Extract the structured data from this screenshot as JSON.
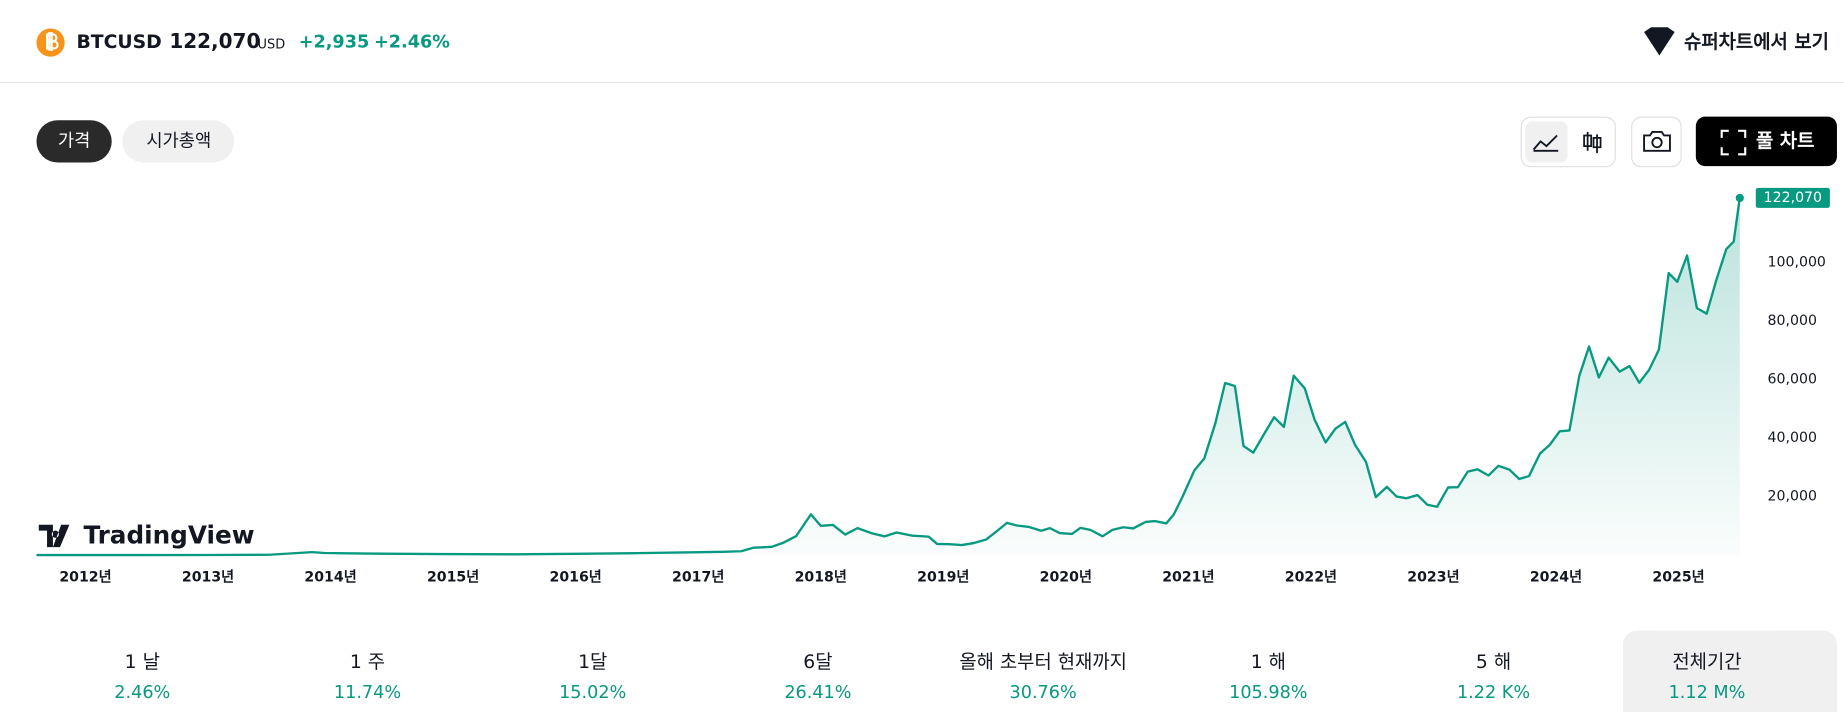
{
  "header": {
    "symbol": "BTCUSD",
    "price": "122,070",
    "currency": "USD",
    "change": "+2,935",
    "change_percent": "+2.46%",
    "supercharts_link": "슈퍼차트에서 보기"
  },
  "tabs": [
    "가격",
    "시가총액"
  ],
  "full_chart_button": "풀 차트",
  "logo": "TradingView",
  "chart_data": {
    "type": "line",
    "color": "#089981",
    "grid": false,
    "x": [
      2011.6,
      2012.5,
      2013.0,
      2013.5,
      2013.85,
      2013.95,
      2014.3,
      2014.9,
      2015.5,
      2016.0,
      2016.5,
      2016.95,
      2017.2,
      2017.35,
      2017.45,
      2017.6,
      2017.7,
      2017.8,
      2017.92,
      2018.0,
      2018.1,
      2018.2,
      2018.3,
      2018.42,
      2018.52,
      2018.62,
      2018.75,
      2018.88,
      2018.95,
      2019.05,
      2019.15,
      2019.25,
      2019.35,
      2019.45,
      2019.52,
      2019.6,
      2019.7,
      2019.8,
      2019.87,
      2019.95,
      2020.05,
      2020.12,
      2020.2,
      2020.3,
      2020.38,
      2020.47,
      2020.55,
      2020.65,
      2020.73,
      2020.82,
      2020.88,
      2020.95,
      2021.05,
      2021.13,
      2021.22,
      2021.3,
      2021.38,
      2021.45,
      2021.53,
      2021.62,
      2021.7,
      2021.78,
      2021.86,
      2021.95,
      2022.03,
      2022.12,
      2022.2,
      2022.28,
      2022.36,
      2022.45,
      2022.53,
      2022.62,
      2022.7,
      2022.78,
      2022.87,
      2022.95,
      2023.03,
      2023.12,
      2023.2,
      2023.28,
      2023.36,
      2023.45,
      2023.53,
      2023.62,
      2023.7,
      2023.78,
      2023.87,
      2023.95,
      2024.03,
      2024.11,
      2024.19,
      2024.27,
      2024.35,
      2024.43,
      2024.52,
      2024.6,
      2024.68,
      2024.76,
      2024.84,
      2024.92,
      2024.99,
      2025.07,
      2025.15,
      2025.23,
      2025.31,
      2025.39,
      2025.45,
      2025.5
    ],
    "values": [
      5,
      7,
      13,
      100,
      1000,
      700,
      500,
      350,
      250,
      430,
      650,
      950,
      1100,
      1300,
      2500,
      2800,
      4300,
      6500,
      13900,
      10000,
      10300,
      7000,
      9200,
      7400,
      6400,
      7700,
      6600,
      6300,
      3800,
      3700,
      3400,
      4100,
      5300,
      8600,
      11000,
      10100,
      9600,
      8300,
      9200,
      7500,
      7200,
      9300,
      8600,
      6400,
      8600,
      9500,
      9100,
      11300,
      11600,
      10800,
      13800,
      19700,
      29000,
      33000,
      45000,
      58800,
      57800,
      37300,
      35000,
      41500,
      47100,
      43800,
      61300,
      57000,
      46300,
      38500,
      43200,
      45500,
      37700,
      31800,
      19800,
      23300,
      20000,
      19400,
      20500,
      17200,
      16500,
      23100,
      23200,
      28500,
      29300,
      27200,
      30500,
      29200,
      26000,
      27000,
      34700,
      37700,
      42300,
      42600,
      61200,
      71300,
      60700,
      67500,
      62700,
      64600,
      58900,
      63300,
      70200,
      96400,
      93400,
      102400,
      84400,
      82500,
      94200,
      104600,
      107100,
      122070
    ],
    "xlim": [
      2011.6,
      2025.6
    ],
    "xticks": [
      {
        "value": 2012,
        "label": "2012년"
      },
      {
        "value": 2013,
        "label": "2013년"
      },
      {
        "value": 2014,
        "label": "2014년"
      },
      {
        "value": 2015,
        "label": "2015년"
      },
      {
        "value": 2016,
        "label": "2016년"
      },
      {
        "value": 2017,
        "label": "2017년"
      },
      {
        "value": 2018,
        "label": "2018년"
      },
      {
        "value": 2019,
        "label": "2019년"
      },
      {
        "value": 2020,
        "label": "2020년"
      },
      {
        "value": 2021,
        "label": "2021년"
      },
      {
        "value": 2022,
        "label": "2022년"
      },
      {
        "value": 2023,
        "label": "2023년"
      },
      {
        "value": 2024,
        "label": "2024년"
      },
      {
        "value": 2025,
        "label": "2025년"
      }
    ],
    "ylim": [
      0,
      125000
    ],
    "yticks": [
      {
        "value": 20000,
        "label": "20,000"
      },
      {
        "value": 40000,
        "label": "40,000"
      },
      {
        "value": 60000,
        "label": "60,000"
      },
      {
        "value": 80000,
        "label": "80,000"
      },
      {
        "value": 100000,
        "label": "100,000"
      }
    ]
  },
  "performance": [
    {
      "period": "1 날",
      "value": "2.46%"
    },
    {
      "period": "1 주",
      "value": "11.74%"
    },
    {
      "period": "1달",
      "value": "15.02%"
    },
    {
      "period": "6달",
      "value": "26.41%"
    },
    {
      "period": "올해 초부터 현재까지",
      "value": "30.76%"
    },
    {
      "period": "1 해",
      "value": "105.98%"
    },
    {
      "period": "5 해",
      "value": "1.22 K%"
    },
    {
      "period": "전체기간",
      "value": "1.12 M%"
    }
  ]
}
